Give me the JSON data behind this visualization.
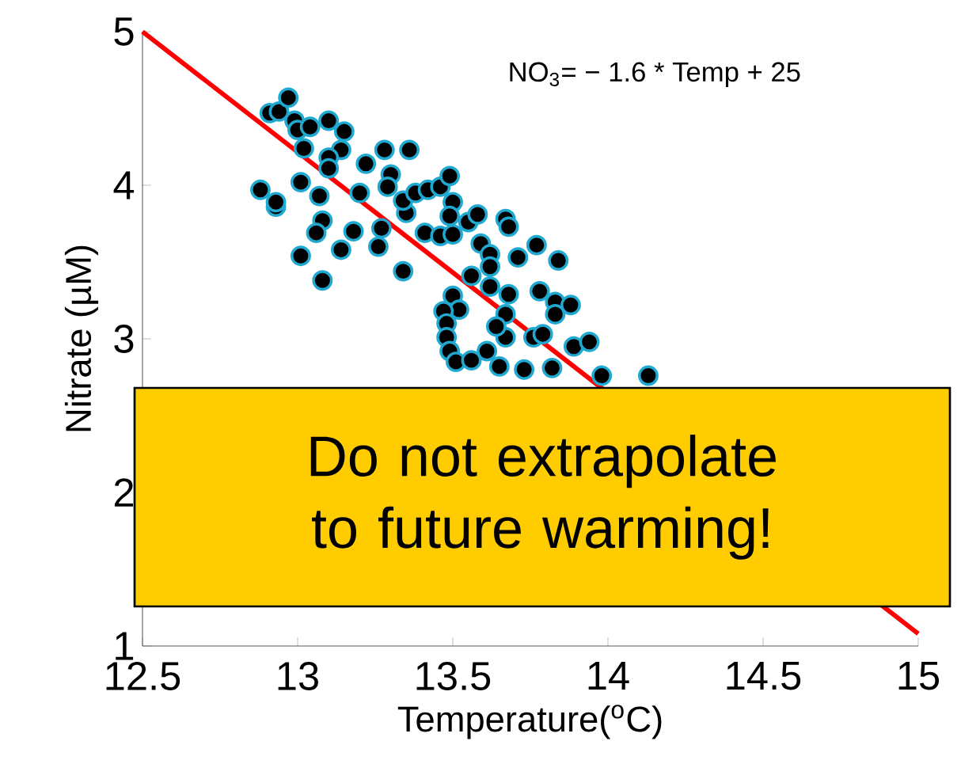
{
  "chart_data": {
    "type": "scatter",
    "xlabel": "Temperature($^{o}$C)",
    "ylabel": "Nitrate (µM)",
    "xlim": [
      12.5,
      15
    ],
    "ylim": [
      1,
      5
    ],
    "xticks": [
      12.5,
      13,
      13.5,
      14,
      14.5,
      15
    ],
    "yticks": [
      1,
      2,
      3,
      4,
      5
    ],
    "annotations": [
      "NO$_{3}$= − 1.6 * Temp + 25",
      "Do not extrapolate to future warming!"
    ],
    "series": [
      {
        "color": "#000000",
        "marker": "circle",
        "x": [
          12.88,
          12.93,
          12.93,
          12.91,
          12.94,
          12.97,
          12.99,
          13.0,
          13.02,
          13.04,
          13.1,
          13.15,
          13.14,
          13.1,
          13.1,
          13.01,
          13.07,
          13.08,
          13.06,
          13.01,
          13.08,
          13.14,
          13.18,
          13.2,
          13.22,
          13.28,
          13.36,
          13.3,
          13.29,
          13.27,
          13.26,
          13.34,
          13.35,
          13.34,
          13.38,
          13.42,
          13.46,
          13.49,
          13.5,
          13.49,
          13.41,
          13.46,
          13.5,
          13.55,
          13.58,
          13.59,
          13.62,
          13.62,
          13.56,
          13.62,
          13.5,
          13.52,
          13.47,
          13.48,
          13.48,
          13.49,
          13.51,
          13.56,
          13.61,
          13.65,
          13.73,
          13.67,
          13.67,
          13.68,
          13.67,
          13.68,
          13.71,
          13.77,
          13.78,
          13.76,
          13.79,
          13.82,
          13.83,
          13.83,
          13.84,
          13.88,
          13.89,
          13.94,
          13.98,
          14.13,
          13.64
        ],
        "values": [
          3.97,
          3.86,
          3.89,
          4.47,
          4.48,
          4.57,
          4.42,
          4.36,
          4.24,
          4.38,
          4.42,
          4.35,
          4.23,
          4.18,
          4.11,
          4.02,
          3.93,
          3.77,
          3.69,
          3.54,
          3.38,
          3.58,
          3.7,
          3.95,
          4.14,
          4.23,
          4.23,
          4.07,
          3.99,
          3.72,
          3.6,
          3.44,
          3.82,
          3.9,
          3.95,
          3.97,
          3.99,
          4.06,
          3.89,
          3.8,
          3.69,
          3.67,
          3.68,
          3.76,
          3.81,
          3.62,
          3.55,
          3.47,
          3.41,
          3.34,
          3.28,
          3.19,
          3.18,
          3.1,
          3.01,
          2.92,
          2.85,
          2.86,
          2.92,
          2.82,
          2.8,
          3.16,
          3.01,
          3.29,
          3.78,
          3.73,
          3.53,
          3.61,
          3.31,
          3.01,
          3.03,
          2.81,
          3.24,
          3.16,
          3.51,
          3.22,
          2.95,
          2.98,
          2.76,
          2.76,
          3.08
        ]
      },
      {
        "type": "line",
        "color": "#ff0000",
        "x": [
          12.5,
          15
        ],
        "values": [
          5,
          1.08
        ]
      }
    ]
  }
}
